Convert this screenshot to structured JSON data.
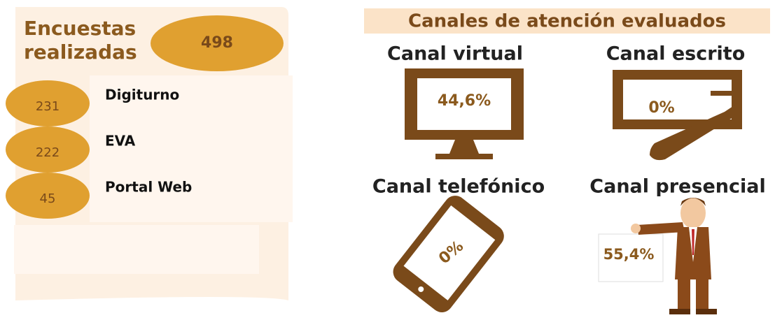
{
  "survey": {
    "title": [
      "Encuestas",
      "realizadas"
    ],
    "total": 498,
    "items": [
      {
        "value": 231,
        "label": "Digiturno"
      },
      {
        "value": 222,
        "label": "EVA"
      },
      {
        "value": 45,
        "label": "Portal Web"
      }
    ]
  },
  "channels": {
    "title": "Canales de atención evaluados",
    "items": [
      {
        "name": "Canal virtual",
        "value": "44,6%"
      },
      {
        "name": "Canal escrito",
        "value": "0%"
      },
      {
        "name": "Canal telefónico",
        "value": "0%"
      },
      {
        "name": "Canal presencial",
        "value": "55,4%"
      }
    ]
  }
}
